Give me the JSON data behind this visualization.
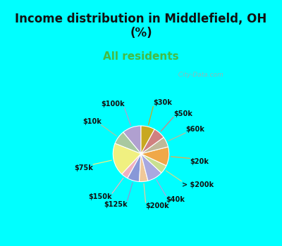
{
  "title": "Income distribution in Middlefield, OH\n(%)",
  "subtitle": "All residents",
  "title_color": "#111111",
  "subtitle_color": "#44bb44",
  "bg_cyan": "#00ffff",
  "bg_chart": "#e0f5ee",
  "labels": [
    "$100k",
    "$10k",
    "$75k",
    "$150k",
    "$125k",
    "$200k",
    "$40k",
    "> $200k",
    "$20k",
    "$60k",
    "$50k",
    "$30k"
  ],
  "values": [
    11,
    8,
    19,
    4,
    7,
    5,
    9,
    5,
    11,
    6,
    7,
    8
  ],
  "colors": [
    "#b0a0d0",
    "#a8c8a0",
    "#f0f080",
    "#f0b0c0",
    "#8898d8",
    "#f0c898",
    "#a8a8e0",
    "#c8e090",
    "#f0a848",
    "#c0b898",
    "#d08080",
    "#c8a820"
  ],
  "line_colors": [
    "#b0a0d0",
    "#a8c8a0",
    "#f0f080",
    "#f0b0c0",
    "#8898d8",
    "#f0c898",
    "#a8a8e0",
    "#c8e090",
    "#f0a848",
    "#c0b898",
    "#d08080",
    "#c8a820"
  ],
  "watermark": "  City-Data.com",
  "title_fontsize": 12,
  "subtitle_fontsize": 11
}
